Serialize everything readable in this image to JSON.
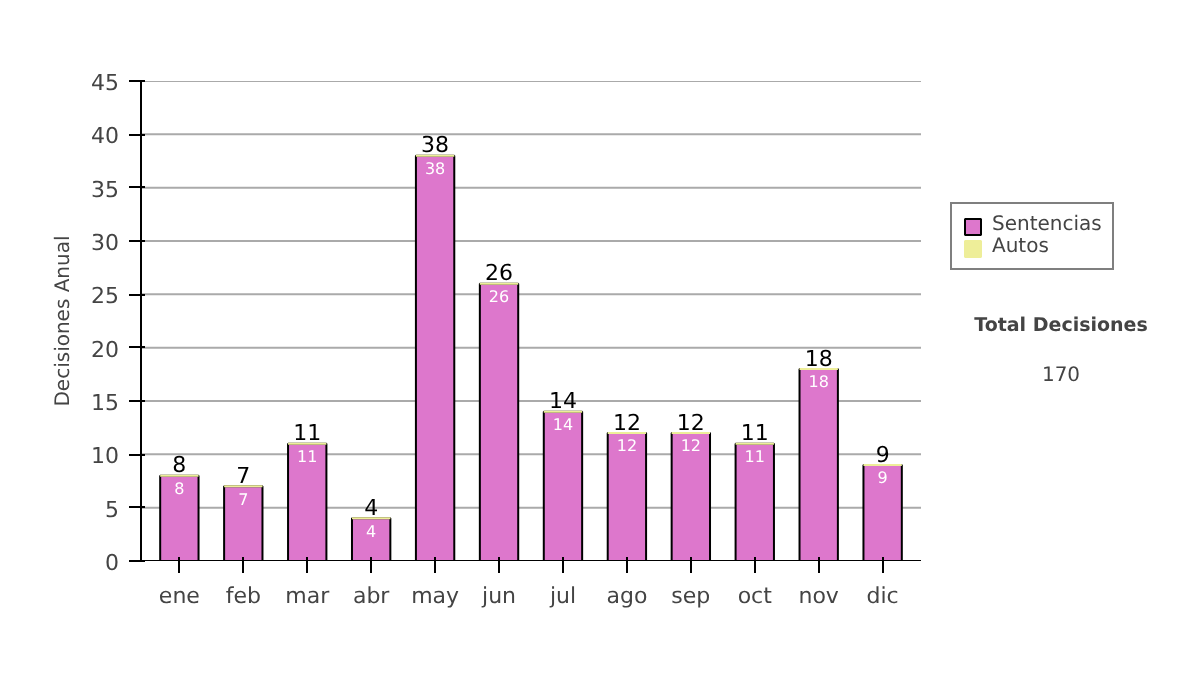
{
  "chart_data": {
    "type": "bar",
    "ylabel": "Decisiones Anual",
    "categories": [
      "ene",
      "feb",
      "mar",
      "abr",
      "may",
      "jun",
      "jul",
      "ago",
      "sep",
      "oct",
      "nov",
      "dic"
    ],
    "stacked": true,
    "series": [
      {
        "name": "Sentencias",
        "color": "#dd77cc",
        "values": [
          8,
          7,
          11,
          4,
          38,
          26,
          14,
          12,
          12,
          11,
          18,
          9
        ],
        "value_labels": [
          "8",
          "7",
          "11",
          "4",
          "38",
          "26",
          "14",
          "12",
          "12",
          "11",
          "18",
          "9"
        ]
      },
      {
        "name": "Autos",
        "color": "#eeee99",
        "values": [
          0,
          0,
          0,
          0,
          0,
          0,
          0,
          0,
          0,
          0,
          0,
          0
        ]
      }
    ],
    "totals": [
      "8",
      "7",
      "11",
      "4",
      "38",
      "26",
      "14",
      "12",
      "12",
      "11",
      "18",
      "9"
    ],
    "ylim": [
      0,
      45
    ],
    "yticks": [
      0,
      5,
      10,
      15,
      20,
      25,
      30,
      35,
      40,
      45
    ],
    "grid": "y",
    "legend": "right",
    "annotations": [
      "Total Decisiones",
      "170"
    ]
  }
}
